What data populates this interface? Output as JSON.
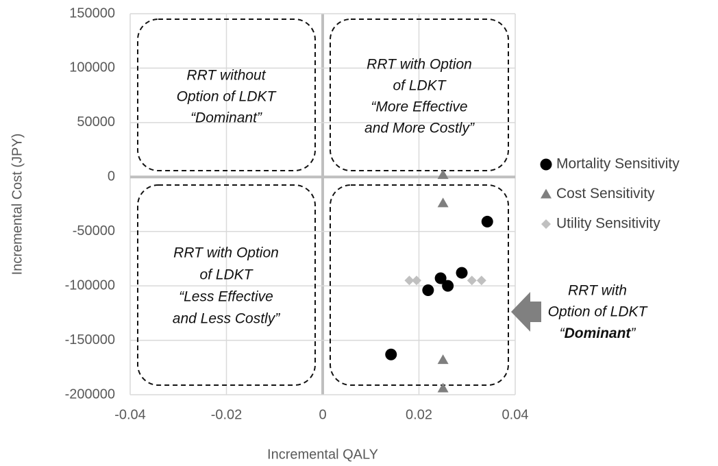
{
  "chart_data": {
    "type": "scatter",
    "x_label": "Incremental  QALY",
    "y_label": "Incremental Cost (JPY)",
    "xlim": [
      -0.04,
      0.04
    ],
    "xticks": [
      -0.04,
      -0.02,
      0,
      0.02,
      0.04
    ],
    "ylim": [
      -200000,
      150000
    ],
    "yticks": [
      -200000,
      -150000,
      -100000,
      -50000,
      0,
      50000,
      100000,
      150000
    ],
    "grid": true,
    "legend": "right",
    "series": [
      {
        "name": "Mortality Sensitivity",
        "color": "#000000",
        "marker": "circle",
        "x": [
          0.0342,
          0.0289,
          0.0245,
          0.026,
          0.0219,
          0.0142
        ],
        "values": [
          -41000,
          -88000,
          -93000,
          -100000,
          -104000,
          -163000
        ]
      },
      {
        "name": "Cost Sensitivity",
        "color": "#7f7f7f",
        "marker": "triangle",
        "x": [
          0.025,
          0.025,
          0.025,
          0.025
        ],
        "values": [
          2000,
          -24000,
          -168000,
          -194000
        ]
      },
      {
        "name": "Utility Sensitivity",
        "color": "#c0c0c0",
        "marker": "diamond",
        "x": [
          0.018,
          0.0195,
          0.025,
          0.031,
          0.033
        ],
        "values": [
          -95000,
          -95000,
          -96000,
          -95000,
          -95000
        ]
      }
    ],
    "annotations": [
      {
        "lines": [
          "RRT without",
          "Option of LDKT",
          "“Dominant”"
        ]
      },
      {
        "lines": [
          "RRT with Option",
          "of LDKT",
          "“More Effective",
          "and More Costly”"
        ]
      },
      {
        "lines": [
          "RRT with Option",
          "of LDKT",
          "“Less Effective",
          "and Less Costly”"
        ]
      },
      {
        "lines": [
          "RRT with",
          "Option of LDKT"
        ],
        "emphasis": [
          "“",
          "Dominant",
          "”"
        ]
      }
    ]
  }
}
